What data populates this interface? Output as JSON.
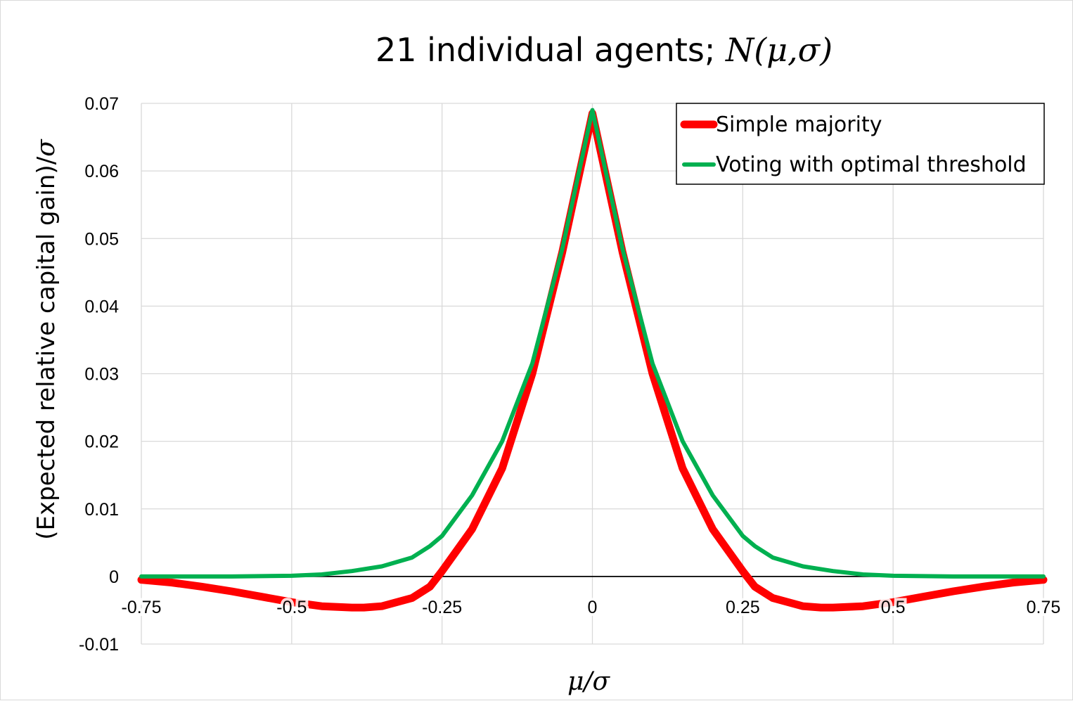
{
  "chart_data": {
    "type": "line",
    "title": "21 individual agents; ",
    "title_math": "N(μ,σ)",
    "xlabel": "μ/σ",
    "ylabel": "(Expected relative capital gain)/",
    "ylabel_math": "σ",
    "xlim": [
      -0.75,
      0.75
    ],
    "ylim": [
      -0.01,
      0.07
    ],
    "x_ticks": [
      -0.75,
      -0.5,
      -0.25,
      0,
      0.25,
      0.5,
      0.75
    ],
    "x_tick_labels": [
      "-0.75",
      "-0.5",
      "-0.25",
      "0",
      "0.25",
      "0.5",
      "0.75"
    ],
    "y_ticks": [
      -0.01,
      0,
      0.01,
      0.02,
      0.03,
      0.04,
      0.05,
      0.06,
      0.07
    ],
    "y_tick_labels": [
      "-0.01",
      "0",
      "0.01",
      "0.02",
      "0.03",
      "0.04",
      "0.05",
      "0.06",
      "0.07"
    ],
    "grid": true,
    "legend_position": "top-right",
    "series": [
      {
        "name": "Simple majority",
        "color": "#ff0000",
        "x": [
          -0.75,
          -0.7,
          -0.65,
          -0.6,
          -0.55,
          -0.5,
          -0.45,
          -0.4,
          -0.38,
          -0.35,
          -0.3,
          -0.27,
          -0.25,
          -0.2,
          -0.15,
          -0.1,
          -0.05,
          0,
          0.05,
          0.1,
          0.15,
          0.2,
          0.25,
          0.27,
          0.3,
          0.35,
          0.38,
          0.4,
          0.45,
          0.5,
          0.55,
          0.6,
          0.65,
          0.7,
          0.75
        ],
        "y": [
          -0.0005,
          -0.0009,
          -0.0015,
          -0.0022,
          -0.003,
          -0.0038,
          -0.0044,
          -0.0046,
          -0.0046,
          -0.0044,
          -0.0032,
          -0.0015,
          0.0008,
          0.007,
          0.016,
          0.03,
          0.048,
          0.0685,
          0.048,
          0.03,
          0.016,
          0.007,
          0.0008,
          -0.0015,
          -0.0032,
          -0.0044,
          -0.0046,
          -0.0046,
          -0.0044,
          -0.0038,
          -0.003,
          -0.0022,
          -0.0015,
          -0.0009,
          -0.0005
        ]
      },
      {
        "name": "Voting with optimal threshold",
        "color": "#00b050",
        "x": [
          -0.75,
          -0.6,
          -0.5,
          -0.45,
          -0.4,
          -0.35,
          -0.3,
          -0.27,
          -0.25,
          -0.2,
          -0.15,
          -0.1,
          -0.05,
          0,
          0.05,
          0.1,
          0.15,
          0.2,
          0.25,
          0.27,
          0.3,
          0.35,
          0.4,
          0.45,
          0.5,
          0.6,
          0.75
        ],
        "y": [
          0.0,
          0.0,
          0.0001,
          0.0003,
          0.0008,
          0.0015,
          0.0028,
          0.0045,
          0.006,
          0.012,
          0.02,
          0.0315,
          0.0485,
          0.069,
          0.0485,
          0.0315,
          0.02,
          0.012,
          0.006,
          0.0045,
          0.0028,
          0.0015,
          0.0008,
          0.0003,
          0.0001,
          0.0,
          0.0
        ]
      }
    ]
  }
}
